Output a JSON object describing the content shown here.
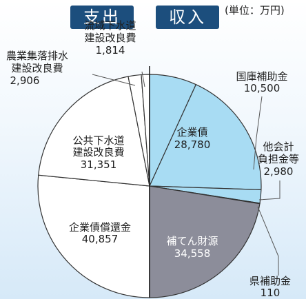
{
  "header": {
    "expense_label": "支出",
    "income_label": "収入",
    "unit_note": "(単位：万円)"
  },
  "colors": {
    "tab": "#1c4e7d",
    "expense_fill": "#ffffff",
    "bond_fill": "#a8dcf3",
    "fee_fill": "#8c8d9a",
    "stroke": "#333333"
  },
  "chart_data": {
    "type": "pie",
    "unit": "万円",
    "charts": [
      {
        "name": "支出",
        "slices": [
          {
            "label": "公共下水道建設改良費",
            "value": 31351
          },
          {
            "label": "企業債償還金",
            "value": 40857
          },
          {
            "label": "農業集落排水建設改良費",
            "value": 2906
          },
          {
            "label": "流域下水道建設改良費",
            "value": 1814
          }
        ]
      },
      {
        "name": "収入",
        "slices": [
          {
            "label": "企業債",
            "value": 28780
          },
          {
            "label": "補てん財源",
            "value": 34558
          },
          {
            "label": "他会計負担金等",
            "value": 2980
          },
          {
            "label": "国庫補助金",
            "value": 10500
          },
          {
            "label": "県補助金",
            "value": 110
          }
        ]
      }
    ]
  },
  "labels": {
    "sewer": {
      "l1": "公共下水道",
      "l2": "建設改良費",
      "v": "31,351"
    },
    "redemption": {
      "l1": "企業債償還金",
      "v": "40,857"
    },
    "rural": {
      "l1": "農業集落排水",
      "l2": "建設改良費",
      "v": "2,906"
    },
    "basin": {
      "l1": "流域下水道",
      "l2": "建設改良費",
      "v": "1,814"
    },
    "bond": {
      "l1": "企業債",
      "v": "28,780"
    },
    "fee": {
      "l1": "補てん財源",
      "v": "34,558"
    },
    "other": {
      "l1": "他会計",
      "l2": "負担金等",
      "v": "2,980"
    },
    "national": {
      "l1": "国庫補助金",
      "v": "10,500"
    },
    "pref": {
      "l1": "県補助金",
      "v": "110"
    }
  }
}
